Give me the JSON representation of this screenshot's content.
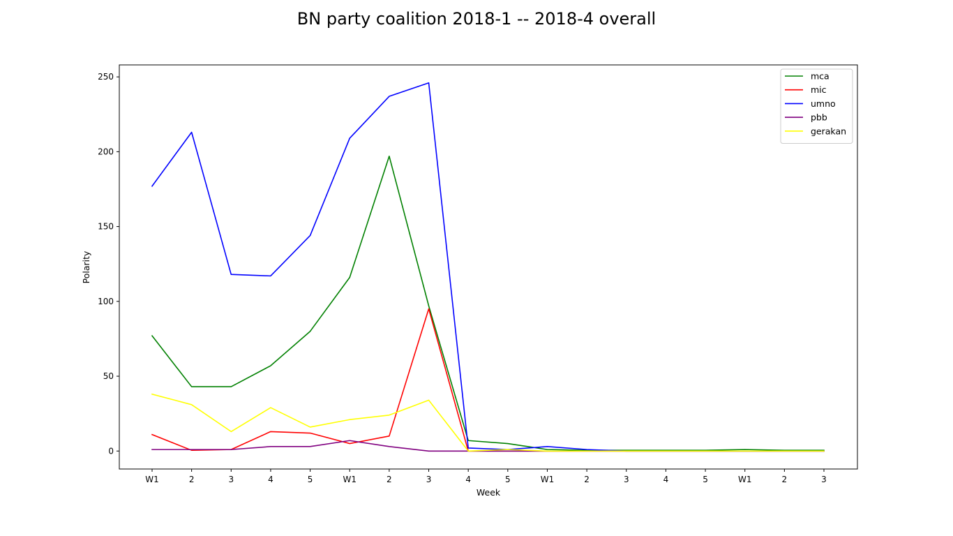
{
  "chart_data": {
    "type": "line",
    "title": "BN party coalition 2018-1 -- 2018-4 overall",
    "xlabel": "Week",
    "ylabel": "Polarity",
    "categories": [
      "W1",
      "2",
      "3",
      "4",
      "5",
      "W1",
      "2",
      "3",
      "4",
      "5",
      "W1",
      "2",
      "3",
      "4",
      "5",
      "W1",
      "2",
      "3"
    ],
    "ylim": [
      -12,
      258
    ],
    "yticks": [
      0,
      50,
      100,
      150,
      200,
      250
    ],
    "grid": false,
    "legend_position": "top-right",
    "series": [
      {
        "name": "mca",
        "color": "#008000",
        "values": [
          77,
          43,
          43,
          57,
          80,
          116,
          197,
          97,
          7,
          5,
          1,
          0.5,
          0.5,
          0.5,
          0.5,
          1,
          0.5,
          0.5
        ]
      },
      {
        "name": "mic",
        "color": "#ff0000",
        "values": [
          11,
          0.5,
          1,
          13,
          12,
          5,
          10,
          95,
          0,
          0,
          0,
          0,
          0,
          0,
          0,
          0,
          0,
          0
        ]
      },
      {
        "name": "umno",
        "color": "#0000ff",
        "values": [
          177,
          213,
          118,
          117,
          144,
          209,
          237,
          246,
          2,
          1,
          3,
          1,
          0,
          0,
          0,
          0,
          0,
          0
        ]
      },
      {
        "name": "pbb",
        "color": "#800080",
        "values": [
          1,
          1,
          1,
          3,
          3,
          7,
          3,
          0,
          0,
          0,
          0,
          0,
          0,
          0,
          0,
          0,
          0,
          0
        ]
      },
      {
        "name": "gerakan",
        "color": "#ffff00",
        "values": [
          38,
          31,
          13,
          29,
          16,
          21,
          24,
          34,
          0,
          1,
          0,
          0,
          0,
          0,
          0,
          0,
          0,
          0
        ]
      }
    ]
  }
}
